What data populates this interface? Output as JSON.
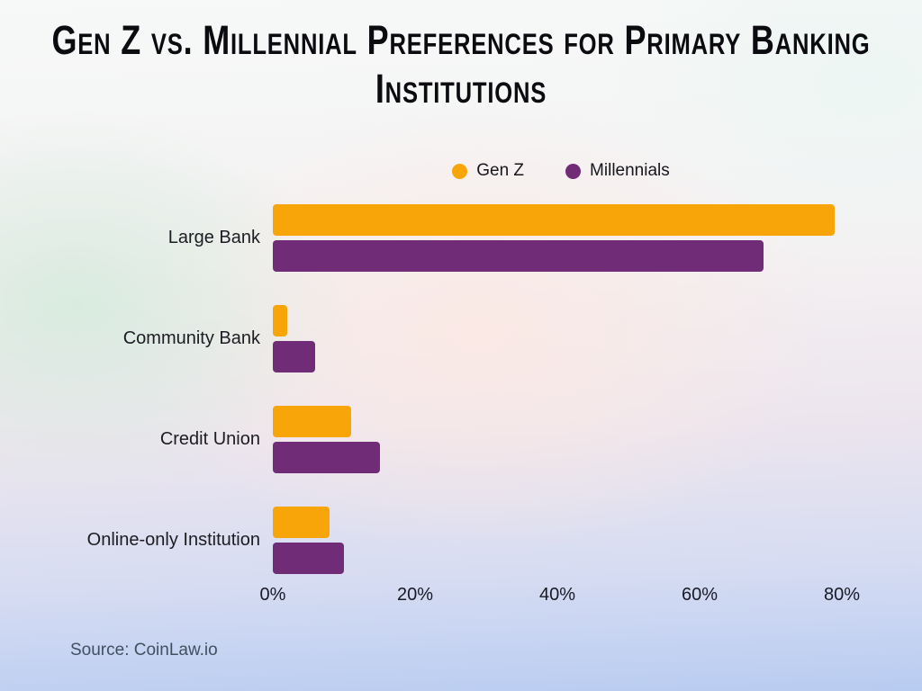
{
  "header": {
    "title": "Gen Z vs. Millennial Preferences for Primary Banking Institutions"
  },
  "legend": {
    "items": [
      {
        "label": "Gen Z",
        "color": "#F7A509"
      },
      {
        "label": "Millennials",
        "color": "#712C78"
      }
    ]
  },
  "footer": {
    "source": "Source: CoinLaw.io"
  },
  "colors": {
    "gen_z": "#F7A509",
    "millennials": "#712C78",
    "title_text": "#0B0B10",
    "axis_text": "#191925",
    "source_text": "#415060"
  },
  "chart_data": {
    "type": "bar",
    "orientation": "horizontal",
    "title": "Gen Z vs. Millennial Preferences for Primary Banking Institutions",
    "categories": [
      "Large Bank",
      "Community Bank",
      "Credit Union",
      "Online-only Institution"
    ],
    "series": [
      {
        "name": "Gen Z",
        "color": "#F7A509",
        "values": [
          79,
          2,
          11,
          8
        ]
      },
      {
        "name": "Millennials",
        "color": "#712C78",
        "values": [
          69,
          6,
          15,
          10
        ]
      }
    ],
    "x_ticks": [
      "0%",
      "20%",
      "40%",
      "60%",
      "80%"
    ],
    "x_tick_values": [
      0,
      20,
      40,
      60,
      80
    ],
    "xlim": [
      0,
      83
    ],
    "xlabel": "",
    "ylabel": "",
    "grid": false,
    "legend_position": "top"
  }
}
